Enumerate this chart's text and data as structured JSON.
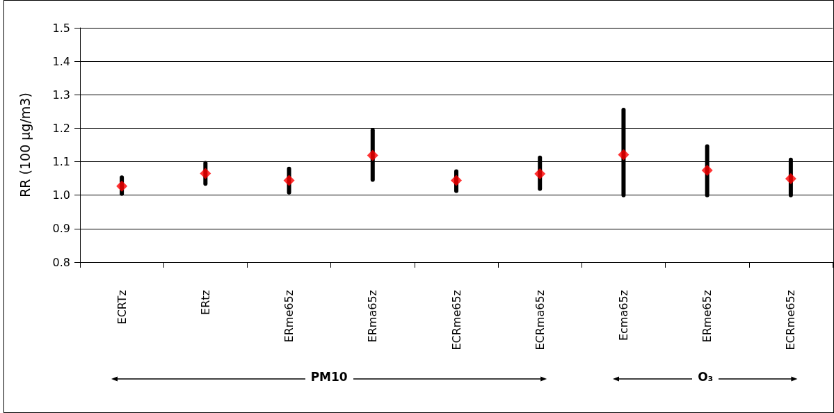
{
  "chart_data": {
    "type": "scatter",
    "ylabel": "RR (100 µg/m3)",
    "categories": [
      "ECRTz",
      "ERtz",
      "ERme65z",
      "ERma65z",
      "ECRme65z",
      "ECRma65z",
      "Ecma65z",
      "ERme65z",
      "ECRme65z"
    ],
    "series": [
      {
        "color": "#ff0000",
        "values": [
          1.027,
          1.065,
          1.044,
          1.119,
          1.044,
          1.064,
          1.121,
          1.074,
          1.049
        ],
        "errors": [
          [
            1.004,
            1.053
          ],
          [
            1.034,
            1.096
          ],
          [
            1.008,
            1.079
          ],
          [
            1.046,
            1.194
          ],
          [
            1.013,
            1.071
          ],
          [
            1.019,
            1.112
          ],
          [
            1.0,
            1.255
          ],
          [
            1.0,
            1.146
          ],
          [
            1.0,
            1.106
          ]
        ]
      }
    ],
    "ylim": [
      0.8,
      1.5
    ],
    "yticks": [
      0.8,
      0.9,
      {
        "value": 1,
        "label": "1.0"
      },
      1.1,
      1.2,
      1.3,
      1.4,
      1.5
    ],
    "grid": "y",
    "marker": "diamond",
    "annotations": [
      "PM10",
      "O₃"
    ]
  }
}
